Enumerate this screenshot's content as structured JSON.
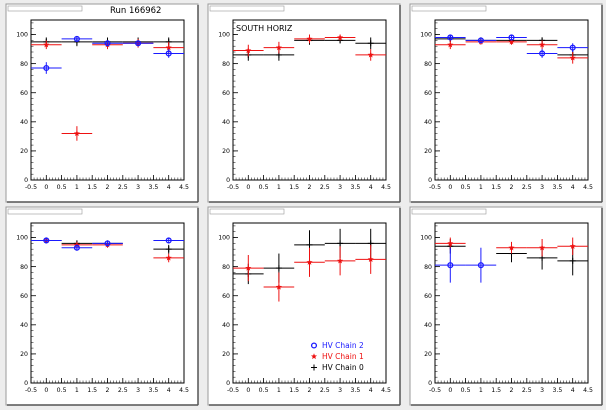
{
  "run_label": "Run 166962",
  "south_label": "SOUTH HORIZ",
  "colors": {
    "chain2": "#1a1aff",
    "chain1": "#ee1111",
    "chain0": "#000000",
    "pad_bg": "#ffffff",
    "canvas_bg": "#ededed"
  },
  "legend": [
    {
      "label": "HV Chain 2",
      "color": "#1a1aff",
      "marker": "open-circle"
    },
    {
      "label": "HV Chain 1",
      "color": "#ee1111",
      "marker": "star"
    },
    {
      "label": "HV Chain 0",
      "color": "#000000",
      "marker": "cross"
    }
  ],
  "chart_data": [
    {
      "type": "scatter",
      "title": "",
      "xlim": [
        -0.5,
        4.5
      ],
      "ylim": [
        0,
        110
      ],
      "xticks": [
        -0.5,
        0,
        0.5,
        1,
        1.5,
        2,
        2.5,
        3,
        3.5,
        4,
        4.5
      ],
      "xtick_labels": [
        "-0.5",
        "0",
        "0.5",
        "1",
        "1.5",
        "2",
        "2.5",
        "3",
        "3.5",
        "4",
        "4.5"
      ],
      "yticks": [
        0,
        20,
        40,
        60,
        80,
        100
      ],
      "ytick_labels": [
        "0",
        "20",
        "40",
        "60",
        "80",
        "100"
      ],
      "series": [
        {
          "name": "HV Chain 2",
          "points": [
            [
              0,
              77,
              4
            ],
            [
              1,
              97,
              2
            ],
            [
              2,
              94,
              2
            ],
            [
              3,
              94,
              2
            ],
            [
              4,
              87,
              3
            ]
          ]
        },
        {
          "name": "HV Chain 1",
          "points": [
            [
              0,
              93,
              3
            ],
            [
              1,
              32,
              5
            ],
            [
              2,
              93,
              3
            ],
            [
              3,
              94,
              3
            ],
            [
              4,
              91,
              4
            ]
          ]
        },
        {
          "name": "HV Chain 0",
          "points": [
            [
              0,
              95,
              3
            ],
            [
              1,
              95,
              3
            ],
            [
              2,
              95,
              3
            ],
            [
              3,
              95,
              3
            ],
            [
              4,
              95,
              3
            ]
          ]
        }
      ]
    },
    {
      "type": "scatter",
      "title": "",
      "xlim": [
        -0.5,
        4.5
      ],
      "ylim": [
        0,
        110
      ],
      "xticks": [
        -0.5,
        0,
        0.5,
        1,
        1.5,
        2,
        2.5,
        3,
        3.5,
        4,
        4.5
      ],
      "xtick_labels": [
        "-0.5",
        "0",
        "0.5",
        "1",
        "1.5",
        "2",
        "2.5",
        "3",
        "3.5",
        "4",
        "4.5"
      ],
      "yticks": [
        0,
        20,
        40,
        60,
        80,
        100
      ],
      "ytick_labels": [
        "0",
        "20",
        "40",
        "60",
        "80",
        "100"
      ],
      "series": [
        {
          "name": "HV Chain 1",
          "points": [
            [
              0,
              89,
              4
            ],
            [
              1,
              91,
              4
            ],
            [
              2,
              97,
              3
            ],
            [
              3,
              98,
              2
            ],
            [
              4,
              86,
              4
            ]
          ]
        },
        {
          "name": "HV Chain 0",
          "points": [
            [
              0,
              86,
              4
            ],
            [
              1,
              86,
              4
            ],
            [
              2,
              96,
              3
            ],
            [
              3,
              96,
              2
            ],
            [
              4,
              94,
              4
            ]
          ]
        }
      ]
    },
    {
      "type": "scatter",
      "title": "",
      "xlim": [
        -0.5,
        4.5
      ],
      "ylim": [
        0,
        110
      ],
      "xticks": [
        -0.5,
        0,
        0.5,
        1,
        1.5,
        2,
        2.5,
        3,
        3.5,
        4,
        4.5
      ],
      "xtick_labels": [
        "-0.5",
        "0",
        "0.5",
        "1",
        "1.5",
        "2",
        "2.5",
        "3",
        "3.5",
        "4",
        "4.5"
      ],
      "yticks": [
        0,
        20,
        40,
        60,
        80,
        100
      ],
      "ytick_labels": [
        "0",
        "20",
        "40",
        "60",
        "80",
        "100"
      ],
      "series": [
        {
          "name": "HV Chain 2",
          "points": [
            [
              0,
              98,
              2
            ],
            [
              1,
              96,
              2
            ],
            [
              2,
              98,
              2
            ],
            [
              3,
              87,
              3
            ],
            [
              4,
              91,
              3
            ]
          ]
        },
        {
          "name": "HV Chain 1",
          "points": [
            [
              0,
              93,
              3
            ],
            [
              1,
              95,
              2
            ],
            [
              2,
              95,
              2
            ],
            [
              3,
              93,
              3
            ],
            [
              4,
              84,
              4
            ]
          ]
        },
        {
          "name": "HV Chain 0",
          "points": [
            [
              0,
              97,
              2
            ],
            [
              1,
              96,
              2
            ],
            [
              2,
              96,
              2
            ],
            [
              3,
              96,
              2
            ],
            [
              4,
              86,
              3
            ]
          ]
        }
      ]
    },
    {
      "type": "scatter",
      "title": "",
      "xlim": [
        -0.5,
        4.5
      ],
      "ylim": [
        0,
        110
      ],
      "xticks": [
        -0.5,
        0,
        0.5,
        1,
        1.5,
        2,
        2.5,
        3,
        3.5,
        4,
        4.5
      ],
      "xtick_labels": [
        "-0.5",
        "0",
        "0.5",
        "1",
        "1.5",
        "2",
        "2.5",
        "3",
        "3.5",
        "4",
        "4.5"
      ],
      "yticks": [
        0,
        20,
        40,
        60,
        80,
        100
      ],
      "ytick_labels": [
        "0",
        "20",
        "40",
        "60",
        "80",
        "100"
      ],
      "series": [
        {
          "name": "HV Chain 2",
          "points": [
            [
              0,
              98,
              2
            ],
            [
              1,
              93,
              2
            ],
            [
              2,
              96,
              2
            ],
            [
              4,
              98,
              2
            ]
          ]
        },
        {
          "name": "HV Chain 1",
          "points": [
            [
              0,
              98,
              2
            ],
            [
              1,
              95,
              2
            ],
            [
              2,
              95,
              2
            ],
            [
              4,
              86,
              3
            ]
          ]
        },
        {
          "name": "HV Chain 0",
          "points": [
            [
              0,
              98,
              2
            ],
            [
              1,
              96,
              2
            ],
            [
              2,
              96,
              2
            ],
            [
              4,
              92,
              3
            ]
          ]
        }
      ]
    },
    {
      "type": "scatter",
      "title": "",
      "xlim": [
        -0.5,
        4.5
      ],
      "ylim": [
        0,
        110
      ],
      "xticks": [
        -0.5,
        0,
        0.5,
        1,
        1.5,
        2,
        2.5,
        3,
        3.5,
        4,
        4.5
      ],
      "xtick_labels": [
        "-0.5",
        "0",
        "0.5",
        "1",
        "1.5",
        "2",
        "2.5",
        "3",
        "3.5",
        "4",
        "4.5"
      ],
      "yticks": [
        0,
        20,
        40,
        60,
        80,
        100
      ],
      "ytick_labels": [
        "0",
        "20",
        "40",
        "60",
        "80",
        "100"
      ],
      "series": [
        {
          "name": "HV Chain 1",
          "points": [
            [
              0,
              79,
              9
            ],
            [
              1,
              66,
              10
            ],
            [
              2,
              83,
              10
            ],
            [
              3,
              84,
              10
            ],
            [
              4,
              85,
              10
            ]
          ]
        },
        {
          "name": "HV Chain 0",
          "points": [
            [
              0,
              75,
              7
            ],
            [
              1,
              79,
              10
            ],
            [
              2,
              95,
              10
            ],
            [
              3,
              96,
              10
            ],
            [
              4,
              96,
              10
            ]
          ]
        }
      ]
    },
    {
      "type": "scatter",
      "title": "",
      "xlim": [
        -0.5,
        4.5
      ],
      "ylim": [
        0,
        110
      ],
      "xticks": [
        -0.5,
        0,
        0.5,
        1,
        1.5,
        2,
        2.5,
        3,
        3.5,
        4,
        4.5
      ],
      "xtick_labels": [
        "-0.5",
        "0",
        "0.5",
        "1",
        "1.5",
        "2",
        "2.5",
        "3",
        "3.5",
        "4",
        "4.5"
      ],
      "yticks": [
        0,
        20,
        40,
        60,
        80,
        100
      ],
      "ytick_labels": [
        "0",
        "20",
        "40",
        "60",
        "80",
        "100"
      ],
      "series": [
        {
          "name": "HV Chain 2",
          "points": [
            [
              0,
              81,
              12
            ],
            [
              1,
              81,
              12
            ]
          ]
        },
        {
          "name": "HV Chain 1",
          "points": [
            [
              0,
              96,
              4
            ],
            [
              2,
              93,
              4
            ],
            [
              3,
              93,
              6
            ],
            [
              4,
              94,
              6
            ]
          ]
        },
        {
          "name": "HV Chain 0",
          "points": [
            [
              0,
              94,
              5
            ],
            [
              2,
              89,
              6
            ],
            [
              3,
              86,
              8
            ],
            [
              4,
              84,
              10
            ]
          ]
        }
      ]
    }
  ]
}
